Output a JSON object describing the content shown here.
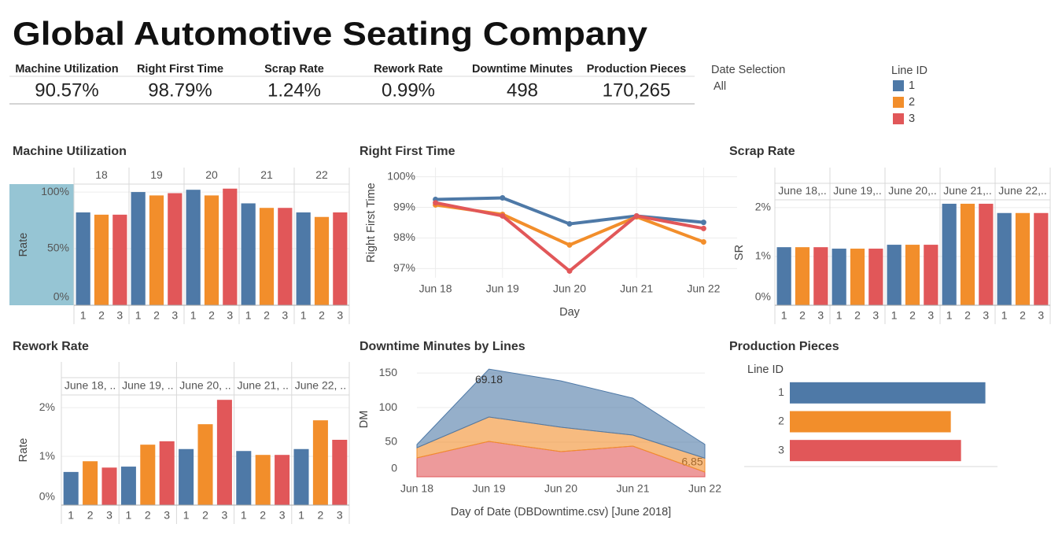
{
  "header": {
    "title": "Global Automotive Seating Company"
  },
  "kpis": [
    {
      "label": "Machine Utilization",
      "value": "90.57%"
    },
    {
      "label": "Right First Time",
      "value": "98.79%"
    },
    {
      "label": "Scrap Rate",
      "value": "1.24%"
    },
    {
      "label": "Rework Rate",
      "value": "0.99%"
    },
    {
      "label": "Downtime Minutes",
      "value": "498"
    },
    {
      "label": "Production Pieces",
      "value": "170,265"
    }
  ],
  "date_filter": {
    "label": "Date Selection",
    "value": "All"
  },
  "legend": {
    "title": "Line ID",
    "items": [
      {
        "name": "1",
        "color": "#4e79a7"
      },
      {
        "name": "2",
        "color": "#f28e2b"
      },
      {
        "name": "3",
        "color": "#e15759"
      }
    ]
  },
  "chart_data": [
    {
      "type": "bar",
      "title": "Machine Utilization",
      "y_label": "Rate",
      "categories": [
        "18",
        "19",
        "20",
        "21",
        "22"
      ],
      "series": [
        {
          "name": "1",
          "color": "#4e79a7",
          "values": [
            82,
            100,
            102,
            90,
            82
          ]
        },
        {
          "name": "2",
          "color": "#f28e2b",
          "values": [
            80,
            97,
            97,
            86,
            78
          ]
        },
        {
          "name": "3",
          "color": "#e15759",
          "values": [
            80,
            99,
            103,
            86,
            82
          ]
        }
      ],
      "ylim": [
        0,
        107
      ],
      "yticks": [
        {
          "value": 0,
          "label": "0%"
        },
        {
          "value": 50,
          "label": "50%"
        },
        {
          "value": 100,
          "label": "100%"
        }
      ],
      "grid": true
    },
    {
      "type": "line",
      "title": "Right First Time",
      "x_label": "Day",
      "y_label": "Right First Time",
      "categories": [
        "Jun 18",
        "Jun 19",
        "Jun 20",
        "Jun 21",
        "Jun 22"
      ],
      "series": [
        {
          "name": "1",
          "color": "#4e79a7",
          "values": [
            99.26,
            99.31,
            98.46,
            98.72,
            98.51
          ]
        },
        {
          "name": "2",
          "color": "#f28e2b",
          "values": [
            99.08,
            98.77,
            97.77,
            98.69,
            97.87
          ]
        },
        {
          "name": "3",
          "color": "#e15759",
          "values": [
            99.15,
            98.72,
            96.92,
            98.72,
            98.31
          ]
        }
      ],
      "ylim": [
        96.7,
        100.3
      ],
      "yticks": [
        {
          "value": 97,
          "label": "97%"
        },
        {
          "value": 98,
          "label": "98%"
        },
        {
          "value": 99,
          "label": "99%"
        },
        {
          "value": 100,
          "label": "100%"
        }
      ],
      "grid": true
    },
    {
      "type": "bar",
      "title": "Scrap Rate",
      "y_label": "SR",
      "categories": [
        "June 18,..",
        "June 19,..",
        "June 20,..",
        "June 21,..",
        "June 22,.."
      ],
      "series": [
        {
          "name": "1",
          "color": "#4e79a7",
          "values": [
            1.19,
            1.16,
            1.24,
            2.08,
            1.89
          ]
        },
        {
          "name": "2",
          "color": "#f28e2b",
          "values": [
            1.19,
            1.16,
            1.24,
            2.08,
            1.89
          ]
        },
        {
          "name": "3",
          "color": "#e15759",
          "values": [
            1.19,
            1.16,
            1.24,
            2.08,
            1.89
          ]
        }
      ],
      "ylim": [
        0,
        2.16
      ],
      "yticks": [
        {
          "value": 0,
          "label": "0%"
        },
        {
          "value": 1,
          "label": "1%"
        },
        {
          "value": 2,
          "label": "2%"
        }
      ],
      "grid": true
    },
    {
      "type": "bar",
      "title": "Rework Rate",
      "y_label": "Rate",
      "categories": [
        "June 18, ..",
        "June 19, ..",
        "June 20, ..",
        "June 21, ..",
        "June 22, .."
      ],
      "series": [
        {
          "name": "1",
          "color": "#4e79a7",
          "values": [
            0.68,
            0.79,
            1.15,
            1.11,
            1.15
          ]
        },
        {
          "name": "2",
          "color": "#f28e2b",
          "values": [
            0.9,
            1.24,
            1.66,
            1.03,
            1.74
          ]
        },
        {
          "name": "3",
          "color": "#e15759",
          "values": [
            0.77,
            1.31,
            2.16,
            1.03,
            1.34
          ]
        }
      ],
      "ylim": [
        0,
        2.26
      ],
      "yticks": [
        {
          "value": 0,
          "label": "0%"
        },
        {
          "value": 1,
          "label": "1%"
        },
        {
          "value": 2,
          "label": "2%"
        }
      ],
      "grid": true
    },
    {
      "type": "area",
      "title": "Downtime Minutes by Lines",
      "x_label": "Day of Date (DBDowntime.csv) [June 2018]",
      "y_label": "DM",
      "categories": [
        "Jun 18",
        "Jun 19",
        "Jun 20",
        "Jun 21",
        "Jun 22"
      ],
      "series": [
        {
          "name": "1",
          "color": "#4e79a7",
          "values": [
            4.6,
            69.18,
            67,
            53.4,
            20
          ],
          "value_labels": [
            null,
            "69.18",
            null,
            null,
            null
          ]
        },
        {
          "name": "2",
          "color": "#f28e2b",
          "values": [
            14.7,
            35.3,
            35.2,
            15.9,
            20
          ]
        },
        {
          "name": "3",
          "color": "#e15759",
          "values": [
            27.3,
            51.1,
            36.4,
            44.3,
            6.85
          ],
          "value_labels": [
            null,
            null,
            null,
            null,
            "6.85"
          ]
        }
      ],
      "ylim": [
        0,
        166
      ],
      "yticks": [
        0,
        50,
        100,
        150
      ],
      "grid": true
    },
    {
      "type": "barh",
      "title": "Production Pieces",
      "axis_title": "Line ID",
      "categories": [
        "1",
        "2",
        "3"
      ],
      "values": [
        63088,
        51940,
        55237
      ],
      "colors": [
        "#4e79a7",
        "#f28e2b",
        "#e15759"
      ],
      "xlim": [
        0,
        67000
      ]
    }
  ]
}
